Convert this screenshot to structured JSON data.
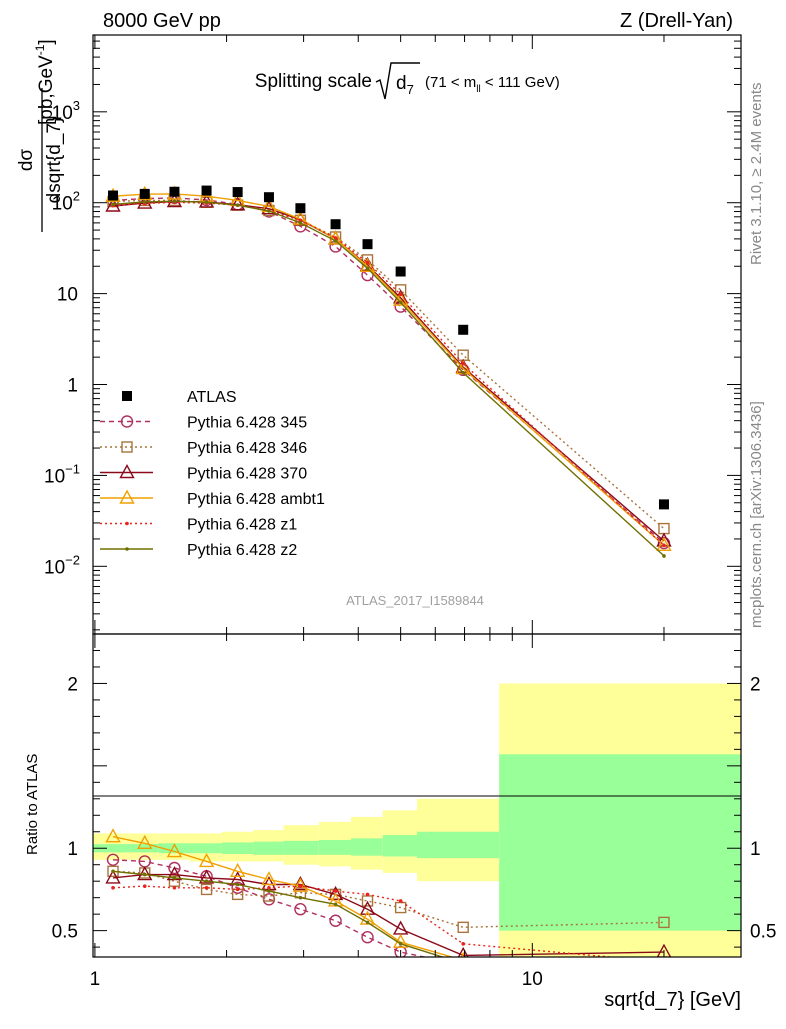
{
  "header": {
    "left": "8000 GeV pp",
    "right": "Z (Drell-Yan)"
  },
  "side_labels": {
    "rivet": "Rivet 3.1.10, ≥ 2.4M events",
    "mcplots": "mcplots.cern.ch [arXiv:1306.3436]"
  },
  "chart_data": {
    "type": "line",
    "title": {
      "main": "Splitting scale",
      "symbol": "d",
      "symbol_sub": "7",
      "range_pre": "(71 < m",
      "range_sub": "ll",
      "range_post": " < 111 GeV)"
    },
    "watermark": "ATLAS_2017_I1589844",
    "xlabel": "sqrt{d_7} [GeV]",
    "ylabel": {
      "numerator": "dσ",
      "denominator": "dsqrt{d_7}",
      "unit": "[pb,GeV",
      "unit_sup": "-1",
      "unit_close": "]"
    },
    "ratio_ylabel": "Ratio to ATLAS",
    "x_scale": "log",
    "y_scale": "log",
    "xlim": [
      0.99,
      30
    ],
    "ylim": [
      0.0018,
      7000
    ],
    "ratio_ylim": [
      0.34,
      2.3
    ],
    "x_ticks": [
      {
        "value": 1,
        "label": "1"
      },
      {
        "value": 10,
        "label": "10"
      }
    ],
    "y_ticks": [
      {
        "value": 0.01,
        "base": "10",
        "exp": "−2"
      },
      {
        "value": 0.1,
        "base": "10",
        "exp": "−1"
      },
      {
        "value": 1,
        "base": "1",
        "exp": ""
      },
      {
        "value": 10,
        "base": "10",
        "exp": ""
      },
      {
        "value": 100,
        "base": "10",
        "exp": "2"
      },
      {
        "value": 1000,
        "base": "10",
        "exp": "3"
      }
    ],
    "ratio_ticks": [
      {
        "value": 0.5,
        "label": "0.5"
      },
      {
        "value": 1,
        "label": "1"
      },
      {
        "value": 2,
        "label": "2"
      }
    ],
    "legend_position": "middle-left",
    "bins": [
      {
        "lo": 0.99,
        "hi": 1.2
      },
      {
        "lo": 1.2,
        "hi": 1.4
      },
      {
        "lo": 1.4,
        "hi": 1.65
      },
      {
        "lo": 1.65,
        "hi": 1.95
      },
      {
        "lo": 1.95,
        "hi": 2.3
      },
      {
        "lo": 2.3,
        "hi": 2.7
      },
      {
        "lo": 2.7,
        "hi": 3.25
      },
      {
        "lo": 3.25,
        "hi": 3.85
      },
      {
        "lo": 3.85,
        "hi": 4.55
      },
      {
        "lo": 4.55,
        "hi": 5.45
      },
      {
        "lo": 5.45,
        "hi": 8.4
      },
      {
        "lo": 8.4,
        "hi": 30
      }
    ],
    "band_green": [
      [
        0.975,
        1.025
      ],
      [
        0.975,
        1.025
      ],
      [
        0.97,
        1.03
      ],
      [
        0.97,
        1.03
      ],
      [
        0.965,
        1.035
      ],
      [
        0.96,
        1.04
      ],
      [
        0.96,
        1.045
      ],
      [
        0.96,
        1.05
      ],
      [
        0.955,
        1.06
      ],
      [
        0.95,
        1.08
      ],
      [
        0.94,
        1.1
      ],
      [
        0.5,
        1.57
      ]
    ],
    "band_yellow": [
      [
        0.93,
        1.09
      ],
      [
        0.93,
        1.09
      ],
      [
        0.93,
        1.09
      ],
      [
        0.92,
        1.09
      ],
      [
        0.92,
        1.1
      ],
      [
        0.92,
        1.11
      ],
      [
        0.9,
        1.14
      ],
      [
        0.89,
        1.16
      ],
      [
        0.87,
        1.19
      ],
      [
        0.85,
        1.23
      ],
      [
        0.8,
        1.3
      ],
      [
        0.34,
        2.0
      ]
    ],
    "data": {
      "name": "ATLAS",
      "color": "#000000",
      "x": [
        1.1,
        1.3,
        1.52,
        1.8,
        2.12,
        2.5,
        2.95,
        3.55,
        4.2,
        5.0,
        6.95,
        20.0
      ],
      "y": [
        120,
        125,
        132,
        136,
        131,
        115,
        87,
        58,
        35,
        17.5,
        4.0,
        0.048
      ]
    },
    "series": [
      {
        "name": "Pythia 6.428 345",
        "color": "#b03060",
        "dash": "5,4",
        "marker": "circle",
        "x": [
          1.1,
          1.3,
          1.52,
          1.8,
          2.12,
          2.5,
          2.95,
          3.55,
          4.2,
          5.0,
          6.95,
          20.0
        ],
        "y": [
          106,
          111,
          113,
          107,
          96,
          80,
          55,
          33,
          16,
          7.2,
          1.45,
          0.018
        ],
        "ratio": [
          0.93,
          0.92,
          0.88,
          0.83,
          0.76,
          0.69,
          0.63,
          0.56,
          0.46,
          0.37,
          0.29,
          0.3
        ]
      },
      {
        "name": "Pythia 6.428 346",
        "color": "#a8743c",
        "dash": "2,3",
        "marker": "square",
        "x": [
          1.1,
          1.3,
          1.52,
          1.8,
          2.12,
          2.5,
          2.95,
          3.55,
          4.2,
          5.0,
          6.95,
          20.0
        ],
        "y": [
          103,
          106,
          106,
          101,
          94,
          82,
          64,
          42,
          23.5,
          11.0,
          2.1,
          0.026
        ],
        "ratio": [
          0.86,
          0.85,
          0.8,
          0.75,
          0.72,
          0.71,
          0.73,
          0.72,
          0.68,
          0.64,
          0.52,
          0.55
        ]
      },
      {
        "name": "Pythia 6.428 370",
        "color": "#8b0a1a",
        "dash": "",
        "marker": "triangle",
        "x": [
          1.1,
          1.3,
          1.52,
          1.8,
          2.12,
          2.5,
          2.95,
          3.55,
          4.2,
          5.0,
          6.95,
          20.0
        ],
        "y": [
          92,
          99,
          103,
          102,
          95,
          86,
          65,
          40,
          20.5,
          9.0,
          1.55,
          0.019
        ],
        "ratio": [
          0.82,
          0.84,
          0.84,
          0.82,
          0.81,
          0.78,
          0.78,
          0.72,
          0.63,
          0.51,
          0.35,
          0.37
        ]
      },
      {
        "name": "Pythia 6.428 ambt1",
        "color": "#f0a000",
        "dash": "",
        "marker": "triangle",
        "x": [
          1.1,
          1.3,
          1.52,
          1.8,
          2.12,
          2.5,
          2.95,
          3.55,
          4.2,
          5.0,
          6.95,
          20.0
        ],
        "y": [
          118,
          124,
          125,
          118,
          106,
          91,
          66,
          40,
          20,
          8.5,
          1.5,
          0.017
        ],
        "ratio": [
          1.07,
          1.03,
          0.98,
          0.92,
          0.86,
          0.81,
          0.77,
          0.68,
          0.57,
          0.43,
          0.32,
          0.3
        ]
      },
      {
        "name": "Pythia 6.428 z1",
        "color": "#e8241c",
        "dash": "2,3",
        "marker": "dot",
        "x": [
          1.1,
          1.3,
          1.52,
          1.8,
          2.12,
          2.5,
          2.95,
          3.55,
          4.2,
          5.0,
          6.95,
          20.0
        ],
        "y": [
          93,
          98,
          101,
          99,
          94,
          82,
          64,
          41,
          22,
          9.8,
          1.7,
          0.017
        ],
        "ratio": [
          0.76,
          0.77,
          0.76,
          0.76,
          0.75,
          0.76,
          0.77,
          0.74,
          0.72,
          0.68,
          0.42,
          0.31
        ]
      },
      {
        "name": "Pythia 6.428 z2",
        "color": "#707000",
        "dash": "",
        "marker": "dot",
        "x": [
          1.1,
          1.3,
          1.52,
          1.8,
          2.12,
          2.5,
          2.95,
          3.55,
          4.2,
          5.0,
          6.95,
          20.0
        ],
        "y": [
          96,
          102,
          104,
          101,
          94,
          81,
          60,
          38,
          19,
          8.0,
          1.35,
          0.013
        ],
        "ratio": [
          0.86,
          0.84,
          0.82,
          0.8,
          0.78,
          0.74,
          0.7,
          0.66,
          0.55,
          0.42,
          0.3,
          0.27
        ]
      }
    ]
  }
}
